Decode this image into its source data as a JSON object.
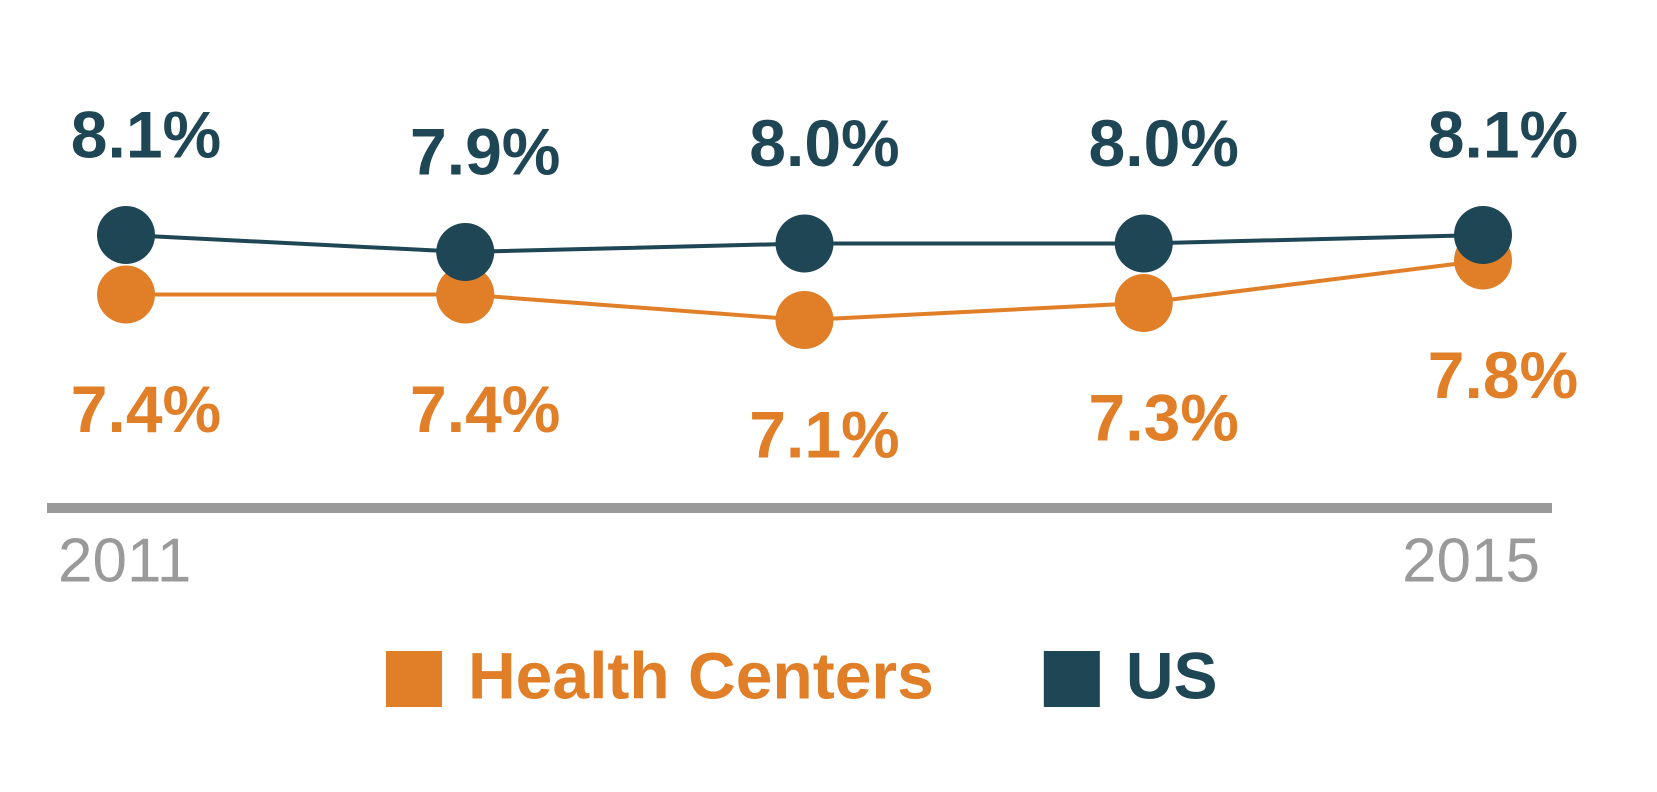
{
  "chart_data": {
    "type": "line",
    "categories": [
      "2011",
      null,
      null,
      null,
      "2015"
    ],
    "series": [
      {
        "name": "Health Centers",
        "color": "#e07f27",
        "values": [
          7.4,
          7.4,
          7.1,
          7.3,
          7.8
        ],
        "value_labels": [
          "7.4%",
          "7.4%",
          "7.1%",
          "7.3%",
          "7.8%"
        ]
      },
      {
        "name": "US",
        "color": "#1f4655",
        "values": [
          8.1,
          7.9,
          8.0,
          8.0,
          8.1
        ],
        "value_labels": [
          "8.1%",
          "7.9%",
          "8.0%",
          "8.0%",
          "8.1%"
        ]
      }
    ]
  }
}
